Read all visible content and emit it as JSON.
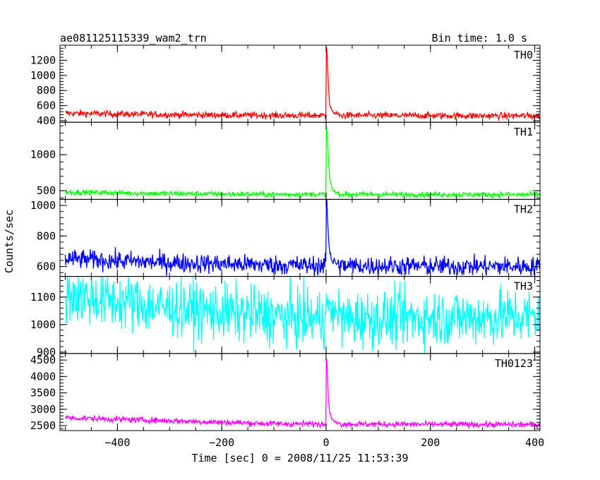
{
  "header": {
    "title": "ae081125115339_wam2_trn",
    "bin_time": "Bin time: 1.0 s"
  },
  "chart_data": {
    "type": "line",
    "xlabel": "Time [sec] 0 = 2008/11/25 11:53:39",
    "ylabel": "Counts/sec",
    "xlim": [
      -510,
      410
    ],
    "x_ticks": [
      -400,
      -200,
      0,
      200,
      400
    ],
    "x_tick_labels": [
      "−400",
      "−200",
      "0",
      "200",
      "400"
    ],
    "panels": [
      {
        "name": "TH0",
        "color": "#ff0000",
        "ylim": [
          380,
          1400
        ],
        "y_ticks": [
          400,
          600,
          800,
          1000,
          1200
        ],
        "baseline": [
          [
            -500,
            500
          ],
          [
            -300,
            480
          ],
          [
            -100,
            470
          ],
          [
            0,
            470
          ],
          [
            410,
            465
          ]
        ],
        "noise": 22,
        "peak": 1400,
        "peak_time": 2,
        "decay": [
          [
            0,
            1400
          ],
          [
            2,
            1300
          ],
          [
            4,
            900
          ],
          [
            7,
            600
          ],
          [
            12,
            520
          ],
          [
            20,
            490
          ]
        ],
        "points": 910
      },
      {
        "name": "TH1",
        "color": "#00ff00",
        "ylim": [
          380,
          1450
        ],
        "y_ticks": [
          500,
          1000
        ],
        "baseline": [
          [
            -500,
            480
          ],
          [
            -300,
            460
          ],
          [
            -100,
            450
          ],
          [
            0,
            450
          ],
          [
            410,
            445
          ]
        ],
        "noise": 18,
        "peak": 1400,
        "peak_time": 2,
        "decay": [
          [
            0,
            1400
          ],
          [
            2,
            1350
          ],
          [
            4,
            1000
          ],
          [
            7,
            650
          ],
          [
            12,
            520
          ],
          [
            20,
            470
          ]
        ],
        "points": 910
      },
      {
        "name": "TH2",
        "color": "#0000ff",
        "ylim": [
          535,
          1040
        ],
        "y_ticks": [
          600,
          800,
          1000
        ],
        "baseline": [
          [
            -500,
            650
          ],
          [
            -300,
            625
          ],
          [
            -100,
            610
          ],
          [
            0,
            605
          ],
          [
            410,
            600
          ]
        ],
        "noise": 32,
        "peak": 1040,
        "peak_time": 2,
        "decay": [
          [
            0,
            1040
          ],
          [
            2,
            1000
          ],
          [
            4,
            820
          ],
          [
            7,
            700
          ],
          [
            12,
            640
          ],
          [
            20,
            615
          ]
        ],
        "points": 910
      },
      {
        "name": "TH3",
        "color": "#00ffff",
        "ylim": [
          895,
          1175
        ],
        "y_ticks": [
          900,
          1000,
          1100
        ],
        "baseline": [
          [
            -500,
            1110
          ],
          [
            -300,
            1060
          ],
          [
            -100,
            1030
          ],
          [
            0,
            1020
          ],
          [
            410,
            1030
          ]
        ],
        "noise": 52,
        "peak": 1110,
        "peak_time": 0,
        "decay": [
          [
            0,
            1110
          ],
          [
            4,
            1060
          ],
          [
            10,
            1030
          ]
        ],
        "points": 910
      },
      {
        "name": "TH0123",
        "color": "#ff00ff",
        "ylim": [
          2350,
          4700
        ],
        "y_ticks": [
          2500,
          3000,
          3500,
          4000,
          4500
        ],
        "baseline": [
          [
            -500,
            2740
          ],
          [
            -300,
            2650
          ],
          [
            -100,
            2560
          ],
          [
            0,
            2550
          ],
          [
            410,
            2530
          ]
        ],
        "noise": 45,
        "peak": 4600,
        "peak_time": 2,
        "decay": [
          [
            0,
            4600
          ],
          [
            2,
            4400
          ],
          [
            4,
            3400
          ],
          [
            7,
            2900
          ],
          [
            12,
            2680
          ],
          [
            20,
            2580
          ]
        ],
        "points": 910
      }
    ]
  }
}
